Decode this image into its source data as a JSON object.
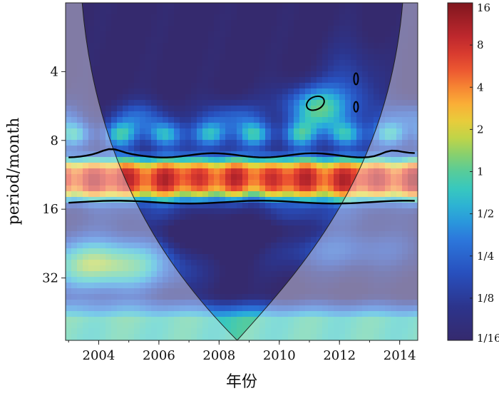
{
  "chart_data": {
    "type": "heatmap",
    "title": "",
    "xlabel": "年份",
    "ylabel": "period/month",
    "xlim": [
      2002.9,
      2014.6
    ],
    "ylim": [
      2,
      60
    ],
    "y_scale": "log2",
    "y_inverted": true,
    "x_ticks": [
      {
        "value": 2004,
        "label": "2004"
      },
      {
        "value": 2006,
        "label": "2006"
      },
      {
        "value": 2008,
        "label": "2008"
      },
      {
        "value": 2010,
        "label": "2010"
      },
      {
        "value": 2012,
        "label": "2012"
      },
      {
        "value": 2014,
        "label": "2014"
      }
    ],
    "y_ticks": [
      {
        "value": 4,
        "label": "4"
      },
      {
        "value": 8,
        "label": "8"
      },
      {
        "value": 16,
        "label": "16"
      },
      {
        "value": 32,
        "label": "32"
      }
    ],
    "colorbar": {
      "scale": "log2",
      "range": [
        0.0625,
        16
      ],
      "ticks": [
        {
          "value": 16,
          "label": "16"
        },
        {
          "value": 8,
          "label": "8"
        },
        {
          "value": 4,
          "label": "4"
        },
        {
          "value": 2,
          "label": "2"
        },
        {
          "value": 1,
          "label": "1"
        },
        {
          "value": 0.5,
          "label": "1/2"
        },
        {
          "value": 0.25,
          "label": "1/4"
        },
        {
          "value": 0.125,
          "label": "1/8"
        },
        {
          "value": 0.0625,
          "label": "1/16"
        }
      ]
    },
    "features": {
      "background_power": 0.06,
      "dominant_band": {
        "period_low": 9.5,
        "period_high": 14.8,
        "peak_power": 10.5
      },
      "significance_band": {
        "period_top": 9.3,
        "period_bottom": 14.9,
        "x_start": 2003.0,
        "x_end": 2014.5
      },
      "cone_of_influence": {
        "apex": [
          2008.6,
          60
        ],
        "edges_at_top": [
          2003.45,
          2014.1
        ]
      }
    }
  }
}
